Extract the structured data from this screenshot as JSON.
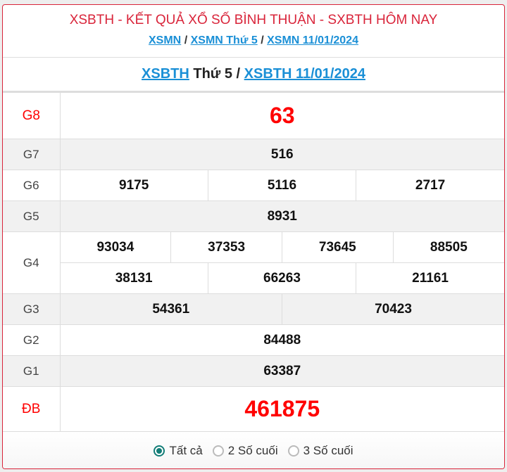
{
  "header": {
    "title": "XSBTH - KẾT QUẢ XỔ SỐ BÌNH THUẬN - SXBTH HÔM NAY",
    "breadcrumb": [
      "XSMN",
      "XSMN Thứ 5",
      "XSMN 11/01/2024"
    ],
    "sep": "/"
  },
  "subtitle": {
    "link1": "XSBTH",
    "middle": " Thứ 5 / ",
    "link2": "XSBTH 11/01/2024"
  },
  "prizes": {
    "g8": {
      "label": "G8",
      "values": [
        "63"
      ]
    },
    "g7": {
      "label": "G7",
      "values": [
        "516"
      ]
    },
    "g6": {
      "label": "G6",
      "values": [
        "9175",
        "5116",
        "2717"
      ]
    },
    "g5": {
      "label": "G5",
      "values": [
        "8931"
      ]
    },
    "g4": {
      "label": "G4",
      "values": [
        "93034",
        "37353",
        "73645",
        "88505",
        "38131",
        "66263",
        "21161"
      ]
    },
    "g3": {
      "label": "G3",
      "values": [
        "54361",
        "70423"
      ]
    },
    "g2": {
      "label": "G2",
      "values": [
        "84488"
      ]
    },
    "g1": {
      "label": "G1",
      "values": [
        "63387"
      ]
    },
    "db": {
      "label": "ĐB",
      "values": [
        "461875"
      ]
    }
  },
  "filter": {
    "options": [
      "Tất cả",
      "2 Số cuối",
      "3 Số cuối"
    ],
    "selected": "Tất cả"
  },
  "colors": {
    "accent": "#d9243a",
    "link": "#1a8fd6",
    "radio": "#137d77",
    "highlight": "#ff0000"
  }
}
